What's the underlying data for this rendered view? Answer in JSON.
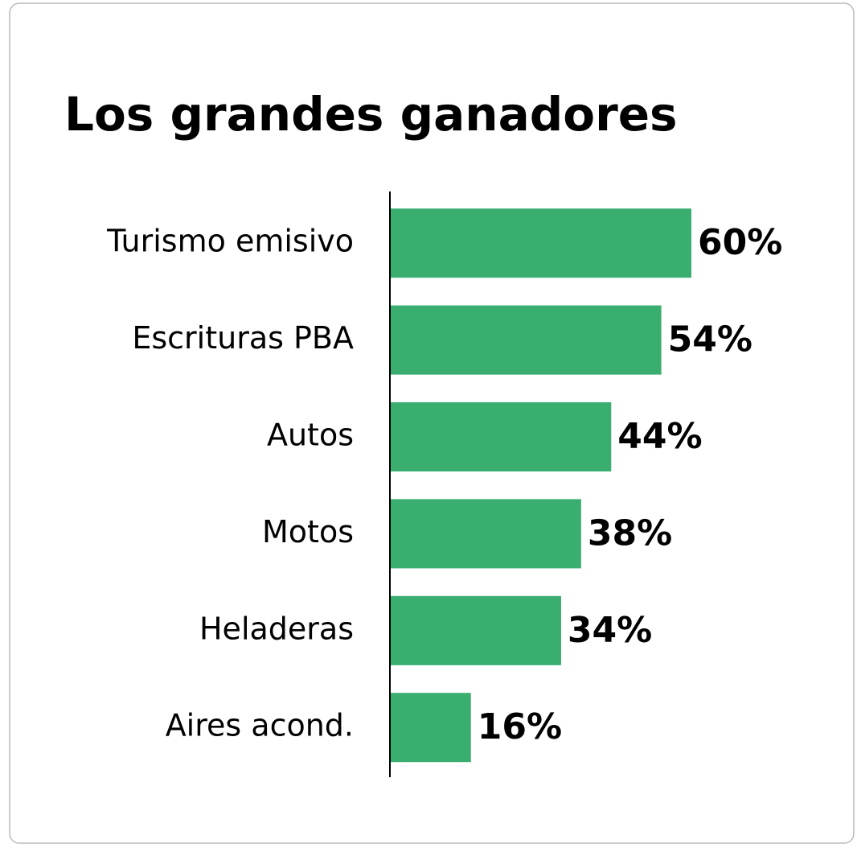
{
  "chart_data": {
    "type": "bar",
    "orientation": "horizontal",
    "title": "Los grandes ganadores",
    "categories": [
      "Turismo emisivo",
      "Escrituras PBA",
      "Autos",
      "Motos",
      "Heladeras",
      "Aires acond."
    ],
    "values": [
      60,
      54,
      44,
      38,
      34,
      16
    ],
    "value_labels": [
      "60%",
      "54%",
      "44%",
      "38%",
      "34%",
      "16%"
    ],
    "color": "#3aae6f"
  }
}
